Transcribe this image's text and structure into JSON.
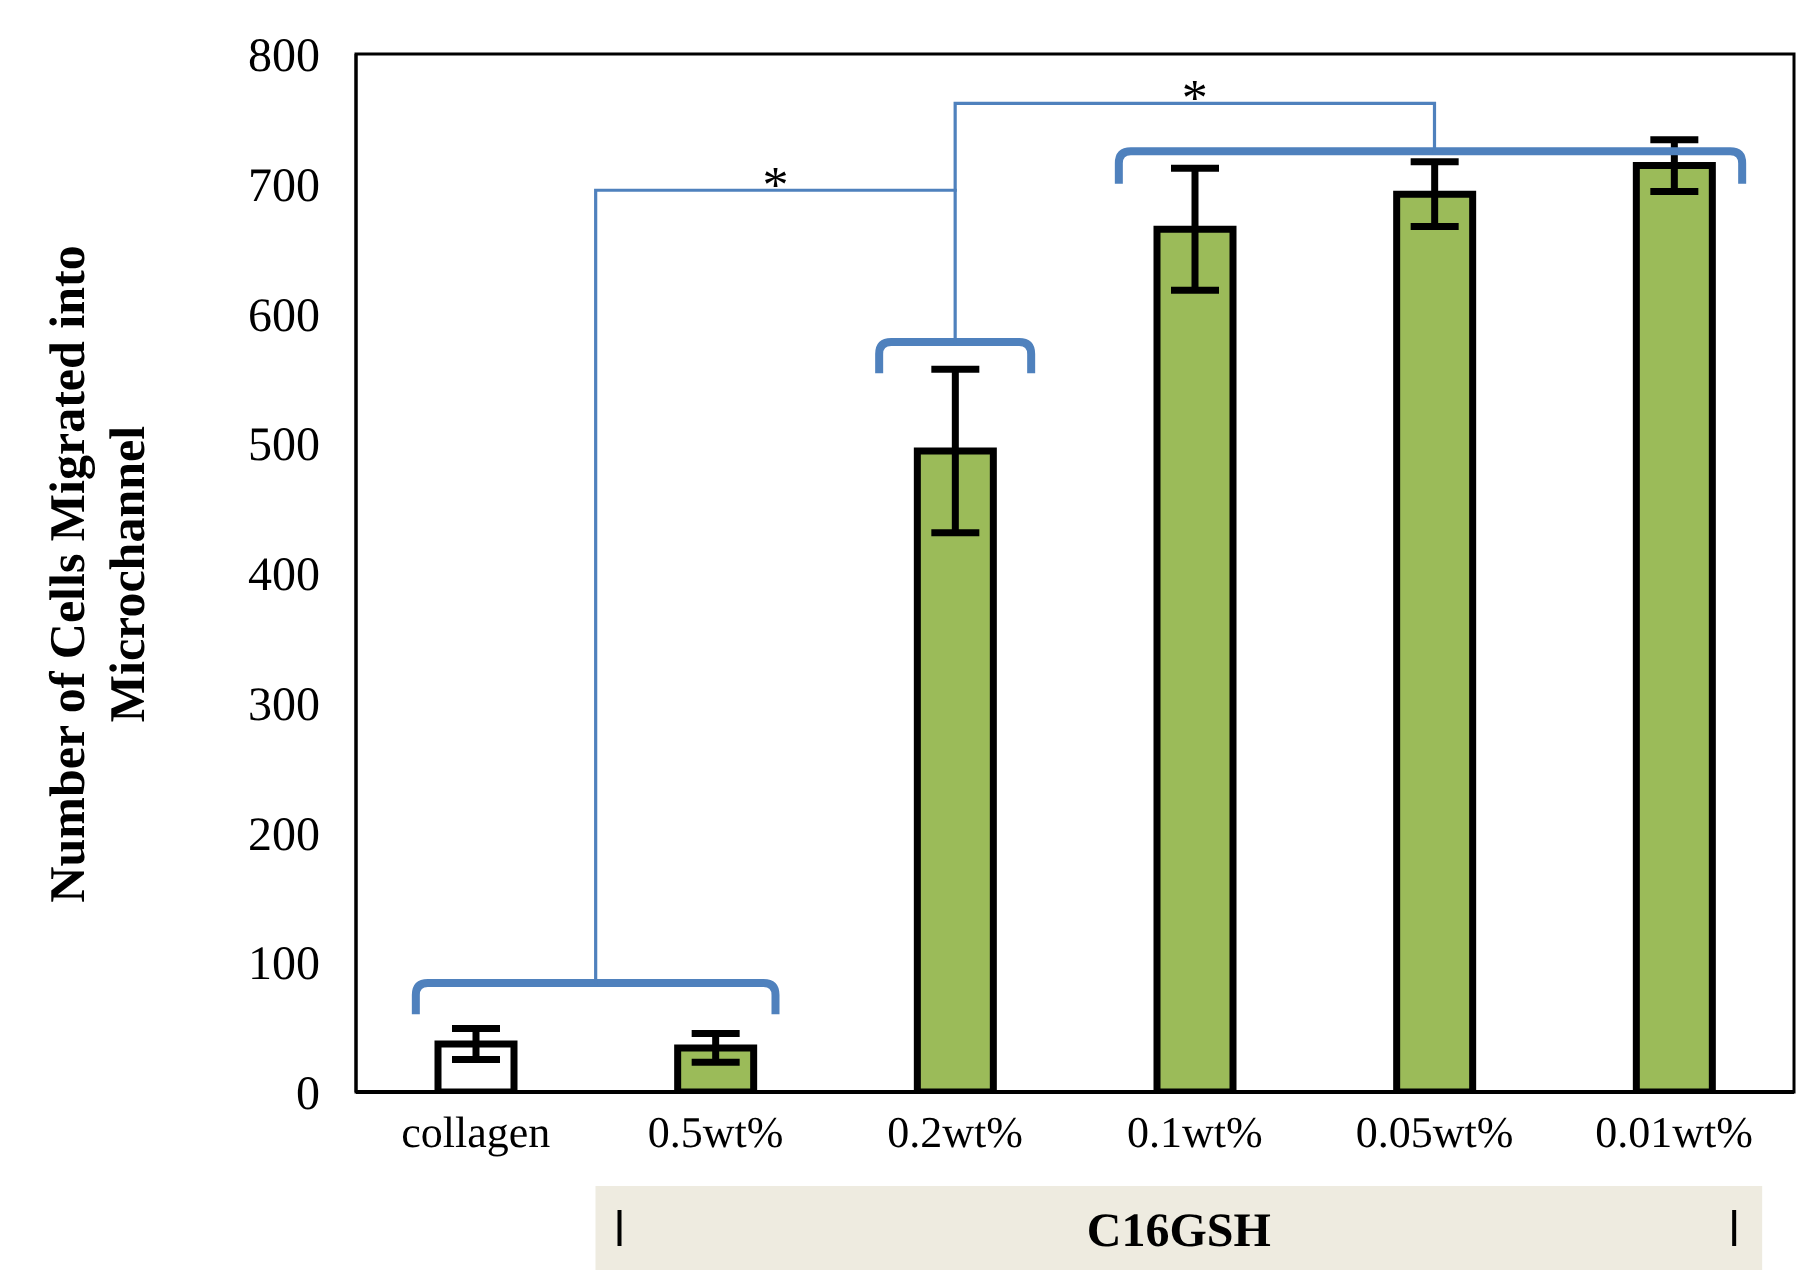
{
  "chart_data": {
    "type": "bar",
    "ylabel": "Number of Cells Migrated into Microchannel",
    "categories": [
      "collagen",
      "0.5wt%",
      "0.2wt%",
      "0.1wt%",
      "0.05wt%",
      "0.01wt%"
    ],
    "values": [
      37,
      34,
      494,
      665,
      692,
      714
    ],
    "errors": [
      12,
      11,
      63,
      47,
      25,
      20
    ],
    "colors": [
      "#ffffff",
      "#9bbb59",
      "#9bbb59",
      "#9bbb59",
      "#9bbb59",
      "#9bbb59"
    ],
    "ylim": [
      0,
      800
    ],
    "yticks": [
      0,
      100,
      200,
      300,
      400,
      500,
      600,
      700,
      800
    ],
    "annotations": [
      "*",
      "*",
      "C16GSH"
    ]
  }
}
